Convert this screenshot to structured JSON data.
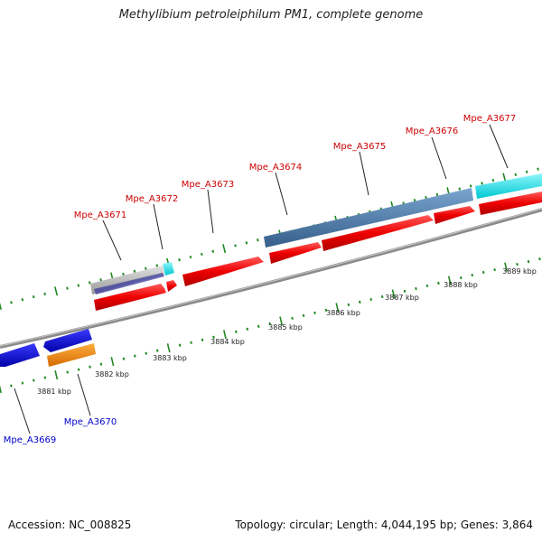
{
  "header": {
    "title": "Methylibium petroleiphilum PM1, complete genome"
  },
  "footer": {
    "accession": "Accession: NC_008825",
    "summary": "Topology: circular; Length: 4,044,195 bp; Genes: 3,864"
  },
  "map": {
    "kbp_ticks": [
      "3881 kbp",
      "3882 kbp",
      "3883 kbp",
      "3884 kbp",
      "3885 kbp",
      "3886 kbp",
      "3887 kbp",
      "3888 kbp",
      "3889 kbp"
    ],
    "forward_genes": [
      "Mpe_A3671",
      "Mpe_A3672",
      "Mpe_A3673",
      "Mpe_A3674",
      "Mpe_A3675",
      "Mpe_A3676",
      "Mpe_A3677"
    ],
    "reverse_genes": [
      "Mpe_A3669",
      "Mpe_A3670"
    ],
    "colors": {
      "forward_label": "#cc0000",
      "reverse_label": "#0000cc",
      "cds": "#ee0000",
      "gene_blue": "#0000dd",
      "orange": "#ff8800",
      "steelblue": "#4a7fb0",
      "cyan": "#00e5ee",
      "grey": "#888888",
      "tick_green": "#228822"
    }
  }
}
